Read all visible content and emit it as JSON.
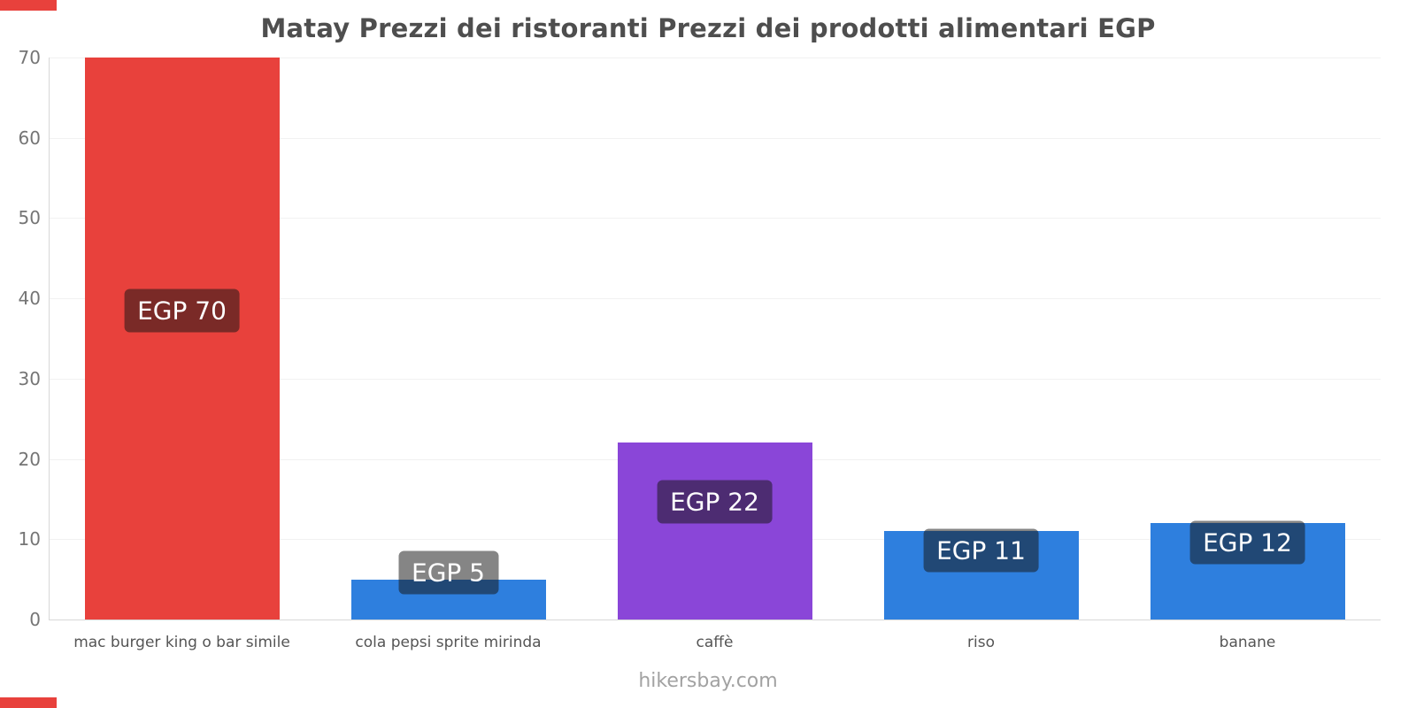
{
  "page": {
    "footer": "hikersbay.com",
    "accent_color": "#e8413c"
  },
  "chart_data": {
    "type": "bar",
    "title": "Matay Prezzi dei ristoranti Prezzi dei prodotti alimentari EGP",
    "categories": [
      "mac burger king o bar simile",
      "cola pepsi sprite mirinda",
      "caffè",
      "riso",
      "banane"
    ],
    "values": [
      70,
      5,
      22,
      11,
      12
    ],
    "labels": [
      "EGP 70",
      "EGP 5",
      "EGP 22",
      "EGP 11",
      "EGP 12"
    ],
    "bar_colors": [
      "#e8413c",
      "#2e7fde",
      "#8a46d8",
      "#2e7fde",
      "#2e7fde"
    ],
    "currency": "EGP",
    "xlabel": "",
    "ylabel": "",
    "ylim": [
      0,
      70
    ],
    "yticks": [
      0,
      10,
      20,
      30,
      40,
      50,
      60,
      70
    ],
    "grid": true,
    "legend": "none"
  }
}
